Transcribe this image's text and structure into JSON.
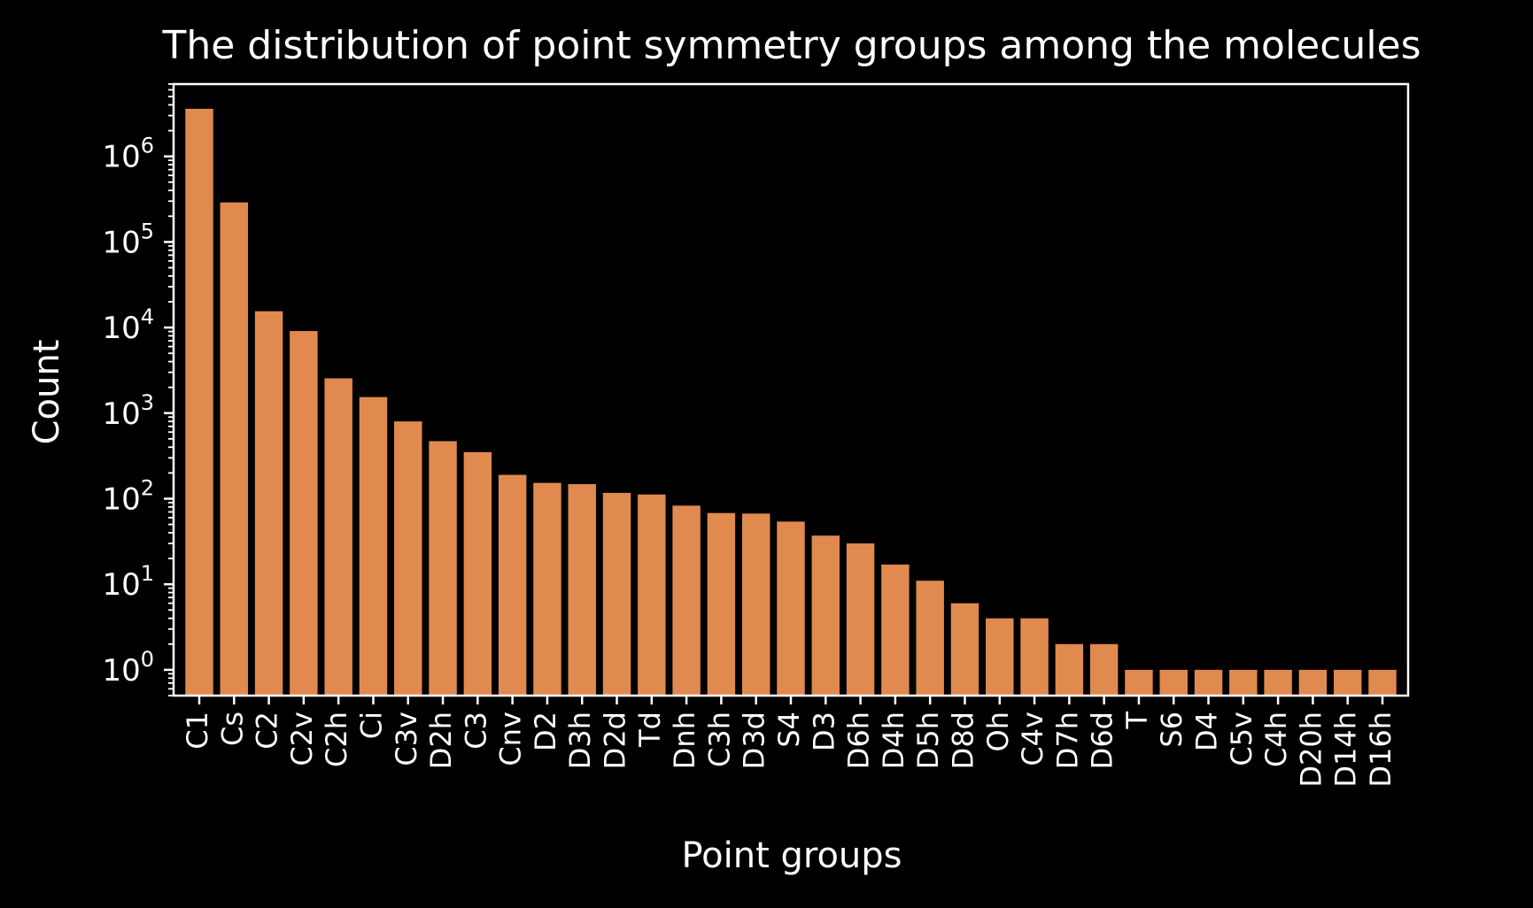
{
  "colors": {
    "background": "#000000",
    "bar": "#e08a50",
    "axis": "#ffffff",
    "text": "#ffffff"
  },
  "chart_data": {
    "type": "bar",
    "title": "The distribution of point symmetry groups among the molecules",
    "xlabel": "Point groups",
    "ylabel": "Count",
    "yscale": "log",
    "ylim": [
      0.5,
      7000000
    ],
    "grid": false,
    "legend": "none",
    "yticks": [
      {
        "value": 1,
        "base": "10",
        "exp": "0"
      },
      {
        "value": 10,
        "base": "10",
        "exp": "1"
      },
      {
        "value": 100,
        "base": "10",
        "exp": "2"
      },
      {
        "value": 1000,
        "base": "10",
        "exp": "3"
      },
      {
        "value": 10000,
        "base": "10",
        "exp": "4"
      },
      {
        "value": 100000,
        "base": "10",
        "exp": "5"
      },
      {
        "value": 1000000,
        "base": "10",
        "exp": "6"
      }
    ],
    "categories": [
      "C1",
      "Cs",
      "C2",
      "C2v",
      "C2h",
      "Ci",
      "C3v",
      "D2h",
      "C3",
      "Cnv",
      "D2",
      "D3h",
      "D2d",
      "Td",
      "Dnh",
      "C3h",
      "D3d",
      "S4",
      "D3",
      "D6h",
      "D4h",
      "D5h",
      "D8d",
      "Oh",
      "C4v",
      "D7h",
      "D6d",
      "T",
      "S6",
      "D4",
      "C5v",
      "C4h",
      "D20h",
      "D14h",
      "D16h"
    ],
    "values": [
      3600000,
      290000,
      15500,
      9100,
      2550,
      1540,
      800,
      470,
      350,
      190,
      153,
      148,
      117,
      112,
      83,
      68,
      67,
      54,
      37,
      30,
      17,
      11,
      6,
      4,
      4,
      2,
      2,
      1,
      1,
      1,
      1,
      1,
      1,
      1,
      1
    ]
  }
}
